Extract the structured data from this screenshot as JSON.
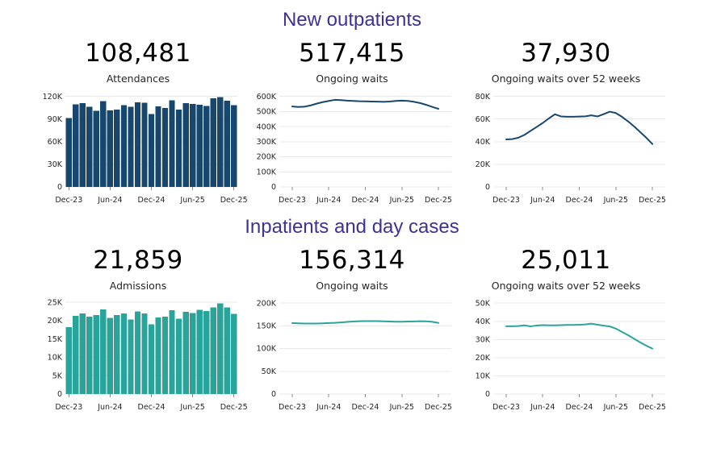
{
  "colors": {
    "purple_heading": "#3d3295",
    "navy_series": "#17476e",
    "teal_series": "#2aa49a",
    "gridline": "#e9e9e9",
    "axis_tick": "#888888",
    "tick_text": "#262626",
    "headline_text": "#000000"
  },
  "sections": [
    {
      "title": "New outpatients",
      "charts": [
        {
          "headline": "108,481",
          "subtitle": "Attendances"
        },
        {
          "headline": "517,415",
          "subtitle": "Ongoing waits"
        },
        {
          "headline": "37,930",
          "subtitle": "Ongoing waits over 52 weeks"
        }
      ]
    },
    {
      "title": "Inpatients and day cases",
      "charts": [
        {
          "headline": "21,859",
          "subtitle": "Admissions"
        },
        {
          "headline": "156,314",
          "subtitle": "Ongoing waits"
        },
        {
          "headline": "25,011",
          "subtitle": "Ongoing waits over 52 weeks"
        }
      ]
    }
  ],
  "chart_data": [
    {
      "type": "bar",
      "title": "108,481",
      "subtitle": "Attendances",
      "section": "New outpatients",
      "unit": "thousands",
      "color": "#17476e",
      "categories": [
        "Dec-23",
        "Jan-24",
        "Feb-24",
        "Mar-24",
        "Apr-24",
        "May-24",
        "Jun-24",
        "Jul-24",
        "Aug-24",
        "Sep-24",
        "Oct-24",
        "Nov-24",
        "Dec-24",
        "Jan-25",
        "Feb-25",
        "Mar-25",
        "Apr-25",
        "May-25",
        "Jun-25",
        "Jul-25",
        "Aug-25",
        "Sep-25",
        "Oct-25",
        "Nov-25",
        "Dec-25"
      ],
      "values": [
        91.5,
        109.6,
        110.9,
        106.5,
        100.7,
        113.7,
        101.4,
        102.4,
        108.2,
        106.1,
        112.3,
        111.6,
        96.6,
        106.8,
        104.4,
        115.0,
        102.7,
        111.3,
        110.2,
        108.9,
        107.5,
        117.7,
        118.8,
        114.3,
        108.481
      ],
      "yticks": [
        0,
        30,
        60,
        90,
        120
      ],
      "ytick_labels": [
        "0",
        "30K",
        "60K",
        "90K",
        "120K"
      ],
      "ylim": [
        0,
        126
      ],
      "x_tick_idx": [
        0,
        6,
        12,
        18,
        24
      ],
      "x_tick_labels": [
        "Dec-23",
        "Jun-24",
        "Dec-24",
        "Jun-25",
        "Dec-25"
      ],
      "grid": true
    },
    {
      "type": "line",
      "title": "517,415",
      "subtitle": "Ongoing waits",
      "section": "New outpatients",
      "unit": "thousands",
      "color": "#17476e",
      "categories": [
        "Dec-23",
        "Jan-24",
        "Feb-24",
        "Mar-24",
        "Apr-24",
        "May-24",
        "Jun-24",
        "Jul-24",
        "Aug-24",
        "Sep-24",
        "Oct-24",
        "Nov-24",
        "Dec-24",
        "Jan-25",
        "Feb-25",
        "Mar-25",
        "Apr-25",
        "May-25",
        "Jun-25",
        "Jul-25",
        "Aug-25",
        "Sep-25",
        "Oct-25",
        "Nov-25",
        "Dec-25"
      ],
      "values": [
        533,
        530,
        532,
        540,
        552,
        562,
        570,
        577,
        575,
        572,
        570,
        568,
        567,
        566,
        565,
        564,
        566,
        570,
        572,
        570,
        564,
        556,
        544,
        530,
        517.415
      ],
      "yticks": [
        0,
        100,
        200,
        300,
        400,
        500,
        600
      ],
      "ytick_labels": [
        "0",
        "100K",
        "200K",
        "300K",
        "400K",
        "500K",
        "600K"
      ],
      "ylim": [
        0,
        630
      ],
      "x_tick_idx": [
        0,
        6,
        12,
        18,
        24
      ],
      "x_tick_labels": [
        "Dec-23",
        "Jun-24",
        "Dec-24",
        "Jun-25",
        "Dec-25"
      ],
      "grid": true
    },
    {
      "type": "line",
      "title": "37,930",
      "subtitle": "Ongoing waits over 52 weeks",
      "section": "New outpatients",
      "unit": "thousands",
      "color": "#17476e",
      "categories": [
        "Dec-23",
        "Jan-24",
        "Feb-24",
        "Mar-24",
        "Apr-24",
        "May-24",
        "Jun-24",
        "Jul-24",
        "Aug-24",
        "Sep-24",
        "Oct-24",
        "Nov-24",
        "Dec-24",
        "Jan-25",
        "Feb-25",
        "Mar-25",
        "Apr-25",
        "May-25",
        "Jun-25",
        "Jul-25",
        "Aug-25",
        "Sep-25",
        "Oct-25",
        "Nov-25",
        "Dec-25"
      ],
      "values": [
        42,
        42.3,
        43.5,
        46,
        49.5,
        53,
        56.5,
        60.5,
        64.2,
        62.3,
        62,
        62,
        62.2,
        62.4,
        63.3,
        62.3,
        64.3,
        66.5,
        65.3,
        62,
        58,
        53.5,
        48.5,
        43.5,
        37.93
      ],
      "yticks": [
        0,
        20,
        40,
        60,
        80
      ],
      "ytick_labels": [
        "0",
        "20K",
        "40K",
        "60K",
        "80K"
      ],
      "ylim": [
        0,
        84
      ],
      "x_tick_idx": [
        0,
        6,
        12,
        18,
        24
      ],
      "x_tick_labels": [
        "Dec-23",
        "Jun-24",
        "Dec-24",
        "Jun-25",
        "Dec-25"
      ],
      "grid": true
    },
    {
      "type": "bar",
      "title": "21,859",
      "subtitle": "Admissions",
      "section": "Inpatients and day cases",
      "unit": "thousands",
      "color": "#2aa49a",
      "categories": [
        "Dec-23",
        "Jan-24",
        "Feb-24",
        "Mar-24",
        "Apr-24",
        "May-24",
        "Jun-24",
        "Jul-24",
        "Aug-24",
        "Sep-24",
        "Oct-24",
        "Nov-24",
        "Dec-24",
        "Jan-25",
        "Feb-25",
        "Mar-25",
        "Apr-25",
        "May-25",
        "Jun-25",
        "Jul-25",
        "Aug-25",
        "Sep-25",
        "Oct-25",
        "Nov-25",
        "Dec-25"
      ],
      "values": [
        18.2,
        21.3,
        21.9,
        21.1,
        21.5,
        23.1,
        20.7,
        21.5,
        21.9,
        20.3,
        22.5,
        22.0,
        19.0,
        20.9,
        21.1,
        22.8,
        20.5,
        22.4,
        22.1,
        22.9,
        22.6,
        23.6,
        24.7,
        23.6,
        21.859
      ],
      "yticks": [
        0,
        5,
        10,
        15,
        20,
        25
      ],
      "ytick_labels": [
        "0",
        "5K",
        "10K",
        "15K",
        "20K",
        "25K"
      ],
      "ylim": [
        0,
        25.9
      ],
      "x_tick_idx": [
        0,
        6,
        12,
        18,
        24
      ],
      "x_tick_labels": [
        "Dec-23",
        "Jun-24",
        "Dec-24",
        "Jun-25",
        "Dec-25"
      ],
      "grid": true
    },
    {
      "type": "line",
      "title": "156,314",
      "subtitle": "Ongoing waits",
      "section": "Inpatients and day cases",
      "unit": "thousands",
      "color": "#2aa49a",
      "categories": [
        "Dec-23",
        "Jan-24",
        "Feb-24",
        "Mar-24",
        "Apr-24",
        "May-24",
        "Jun-24",
        "Jul-24",
        "Aug-24",
        "Sep-24",
        "Oct-24",
        "Nov-24",
        "Dec-24",
        "Jan-25",
        "Feb-25",
        "Mar-25",
        "Apr-25",
        "May-25",
        "Jun-25",
        "Jul-25",
        "Aug-25",
        "Sep-25",
        "Oct-25",
        "Nov-25",
        "Dec-25"
      ],
      "values": [
        156,
        155.5,
        155,
        155,
        155,
        155.5,
        156,
        156.5,
        157.5,
        158.5,
        159.5,
        160,
        160.3,
        160.4,
        160.2,
        159.8,
        159.4,
        159,
        159,
        159.3,
        159.6,
        160,
        159.8,
        158.8,
        156.314
      ],
      "yticks": [
        0,
        50,
        100,
        150,
        200
      ],
      "ytick_labels": [
        "0",
        "50K",
        "100K",
        "150K",
        "200K"
      ],
      "ylim": [
        0,
        209
      ],
      "x_tick_idx": [
        0,
        6,
        12,
        18,
        24
      ],
      "x_tick_labels": [
        "Dec-23",
        "Jun-24",
        "Dec-24",
        "Jun-25",
        "Dec-25"
      ],
      "grid": true
    },
    {
      "type": "line",
      "title": "25,011",
      "subtitle": "Ongoing waits over 52 weeks",
      "section": "Inpatients and day cases",
      "unit": "thousands",
      "color": "#2aa49a",
      "categories": [
        "Dec-23",
        "Jan-24",
        "Feb-24",
        "Mar-24",
        "Apr-24",
        "May-24",
        "Jun-24",
        "Jul-24",
        "Aug-24",
        "Sep-24",
        "Oct-24",
        "Nov-24",
        "Dec-24",
        "Jan-25",
        "Feb-25",
        "Mar-25",
        "Apr-25",
        "May-25",
        "Jun-25",
        "Jul-25",
        "Aug-25",
        "Sep-25",
        "Oct-25",
        "Nov-25",
        "Dec-25"
      ],
      "values": [
        37.3,
        37.3,
        37.4,
        37.8,
        37.2,
        37.7,
        37.9,
        37.8,
        37.8,
        37.9,
        38,
        38,
        38.1,
        38.3,
        38.7,
        38.1,
        37.6,
        37.2,
        36,
        34.2,
        32.4,
        30.4,
        28.4,
        26.6,
        25.011
      ],
      "yticks": [
        0,
        10,
        20,
        30,
        40,
        50
      ],
      "ytick_labels": [
        "0",
        "10K",
        "20K",
        "30K",
        "40K",
        "50K"
      ],
      "ylim": [
        0,
        52.3
      ],
      "x_tick_idx": [
        0,
        6,
        12,
        18,
        24
      ],
      "x_tick_labels": [
        "Dec-23",
        "Jun-24",
        "Dec-24",
        "Jun-25",
        "Dec-25"
      ],
      "grid": true
    }
  ]
}
